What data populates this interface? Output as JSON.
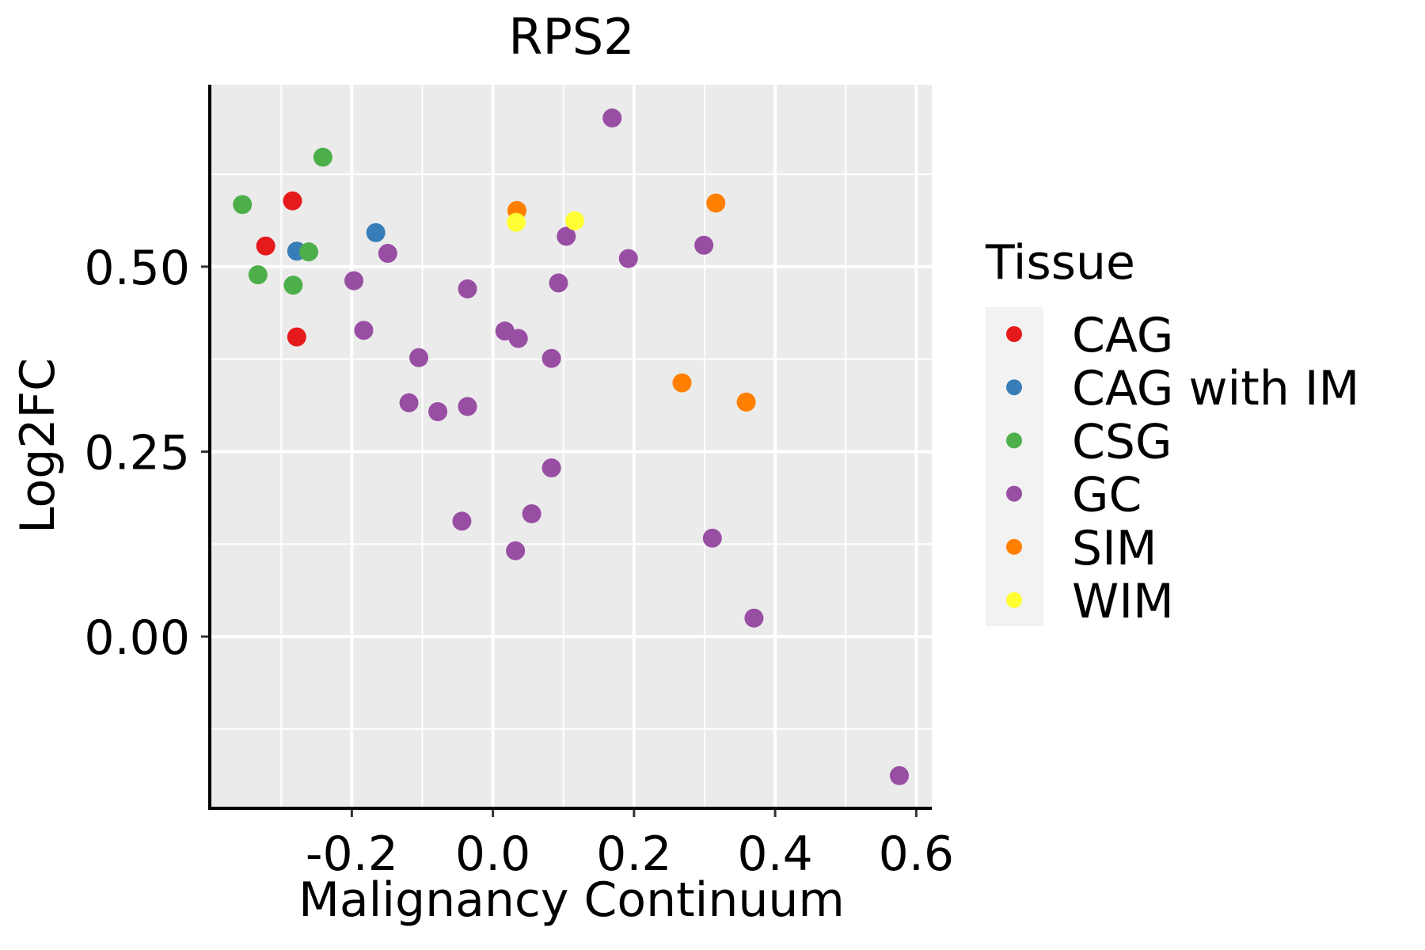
{
  "chart_data": {
    "type": "scatter",
    "title": "RPS2",
    "xlabel": "Malignancy Continuum",
    "ylabel": "Log2FC",
    "xlim": [
      -0.399,
      0.622
    ],
    "ylim": [
      -0.23,
      0.746
    ],
    "xticks": [
      -0.2,
      0.0,
      0.2,
      0.4,
      0.6
    ],
    "xtick_labels": [
      "-0.2",
      "0.0",
      "0.2",
      "0.4",
      "0.6"
    ],
    "xminor": [
      -0.3,
      -0.1,
      0.1,
      0.3,
      0.5
    ],
    "yticks": [
      0.0,
      0.25,
      0.5
    ],
    "ytick_labels": [
      "0.00",
      "0.25",
      "0.50"
    ],
    "yminor": [
      -0.125,
      0.125,
      0.375,
      0.625
    ],
    "grid": true,
    "panel_background": "#EBEBEB",
    "legend": {
      "title": "Tissue",
      "position": "right",
      "entries": [
        {
          "label": "CAG",
          "color": "#E41A1C"
        },
        {
          "label": "CAG with IM",
          "color": "#377EB8"
        },
        {
          "label": "CSG",
          "color": "#4DAF4A"
        },
        {
          "label": "GC",
          "color": "#984EA3"
        },
        {
          "label": "SIM",
          "color": "#FF7F00"
        },
        {
          "label": "WIM",
          "color": "#FFFF33"
        }
      ]
    },
    "series": [
      {
        "name": "CAG",
        "color": "#E41A1C",
        "points": [
          [
            -0.284,
            0.589
          ],
          [
            -0.322,
            0.528
          ],
          [
            -0.278,
            0.405
          ]
        ]
      },
      {
        "name": "CAG with IM",
        "color": "#377EB8",
        "points": [
          [
            -0.166,
            0.546
          ],
          [
            -0.278,
            0.521
          ]
        ]
      },
      {
        "name": "CSG",
        "color": "#4DAF4A",
        "points": [
          [
            -0.241,
            0.648
          ],
          [
            -0.355,
            0.584
          ],
          [
            -0.261,
            0.52
          ],
          [
            -0.333,
            0.489
          ],
          [
            -0.283,
            0.475
          ]
        ]
      },
      {
        "name": "GC",
        "color": "#984EA3",
        "points": [
          [
            0.169,
            0.701
          ],
          [
            -0.149,
            0.518
          ],
          [
            -0.197,
            0.481
          ],
          [
            -0.036,
            0.47
          ],
          [
            -0.183,
            0.414
          ],
          [
            0.104,
            0.541
          ],
          [
            0.093,
            0.478
          ],
          [
            0.017,
            0.413
          ],
          [
            0.036,
            0.403
          ],
          [
            0.192,
            0.511
          ],
          [
            0.299,
            0.529
          ],
          [
            0.083,
            0.376
          ],
          [
            -0.105,
            0.377
          ],
          [
            -0.119,
            0.316
          ],
          [
            -0.078,
            0.304
          ],
          [
            -0.036,
            0.311
          ],
          [
            0.083,
            0.228
          ],
          [
            -0.044,
            0.156
          ],
          [
            0.055,
            0.166
          ],
          [
            0.032,
            0.116
          ],
          [
            0.311,
            0.133
          ],
          [
            0.37,
            0.025
          ],
          [
            0.576,
            -0.188
          ]
        ]
      },
      {
        "name": "SIM",
        "color": "#FF7F00",
        "points": [
          [
            0.034,
            0.576
          ],
          [
            0.316,
            0.586
          ],
          [
            0.268,
            0.343
          ],
          [
            0.359,
            0.317
          ]
        ]
      },
      {
        "name": "WIM",
        "color": "#FFFF33",
        "points": [
          [
            0.033,
            0.56
          ],
          [
            0.116,
            0.562
          ]
        ]
      }
    ]
  }
}
